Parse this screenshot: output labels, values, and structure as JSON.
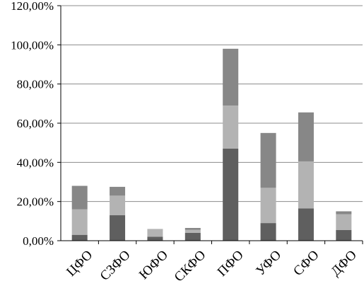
{
  "chart_data": {
    "type": "bar",
    "stacked": true,
    "categories": [
      "ЦФО",
      "СЗФО",
      "ЮФО",
      "СКФО",
      "ПФО",
      "УФО",
      "СФО",
      "ДФО"
    ],
    "series": [
      {
        "values": [
          3.0,
          13.0,
          2.0,
          4.0,
          47.0,
          9.0,
          16.5,
          5.5
        ],
        "color": "#5f5f5f"
      },
      {
        "values": [
          13.0,
          10.0,
          4.0,
          1.5,
          22.0,
          18.0,
          24.0,
          8.0
        ],
        "color": "#b3b3b3"
      },
      {
        "values": [
          12.0,
          4.5,
          0.0,
          1.0,
          29.0,
          28.0,
          25.0,
          1.5
        ],
        "color": "#878787"
      }
    ],
    "yticks": [
      "0,00%",
      "20,00%",
      "40,00%",
      "60,00%",
      "80,00%",
      "100,00%",
      "120,00%"
    ],
    "ytick_values": [
      0,
      20,
      40,
      60,
      80,
      100,
      120
    ],
    "ylim": [
      0,
      120
    ],
    "grid": true,
    "legend": "none",
    "title": "",
    "xlabel": "",
    "ylabel": ""
  }
}
